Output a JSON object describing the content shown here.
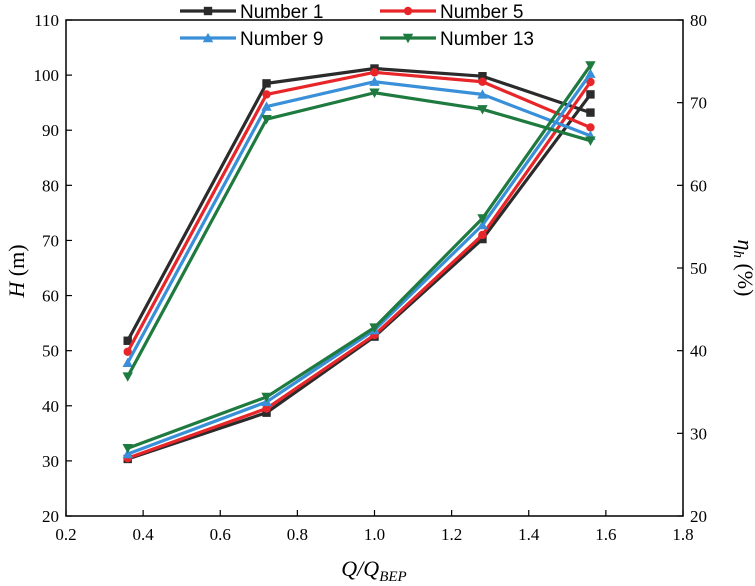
{
  "chart_data": {
    "type": "line",
    "title": "",
    "x": [
      0.36,
      0.72,
      1.0,
      1.28,
      1.56
    ],
    "xlabel": {
      "main": "Q/Q",
      "sub": "BEP"
    },
    "xlim": [
      0.2,
      1.8
    ],
    "xticks": [
      "0.2",
      "0.4",
      "0.6",
      "0.8",
      "1.0",
      "1.2",
      "1.4",
      "1.6",
      "1.8"
    ],
    "ylabel_left": {
      "main": "H",
      "unit": " (m)"
    },
    "ylim_left": [
      20,
      110
    ],
    "yticks_left": [
      "20",
      "30",
      "40",
      "50",
      "60",
      "70",
      "80",
      "90",
      "100",
      "110"
    ],
    "ylabel_right": {
      "main": "η",
      "sub": "h",
      "unit": " (%)"
    },
    "ylim_right": [
      20,
      80
    ],
    "yticks_right": [
      "20",
      "30",
      "40",
      "50",
      "60",
      "70",
      "80"
    ],
    "grid": false,
    "legend_position": "top",
    "series": [
      {
        "name": "Number 1",
        "color": "#2b2b2b",
        "marker": "square",
        "head": [
          51.8,
          98.5,
          101.2,
          99.8,
          93.2
        ],
        "efficiency": [
          26.9,
          32.5,
          41.7,
          53.5,
          71.0
        ]
      },
      {
        "name": "Number 5",
        "color": "#e8262a",
        "marker": "circle",
        "head": [
          49.8,
          96.5,
          100.5,
          98.8,
          90.5
        ],
        "efficiency": [
          27.0,
          33.0,
          41.9,
          54.0,
          72.5
        ]
      },
      {
        "name": "Number 9",
        "color": "#3a90d8",
        "marker": "triangle-up",
        "head": [
          47.8,
          94.3,
          98.8,
          96.5,
          89.0
        ],
        "efficiency": [
          27.5,
          33.8,
          42.5,
          55.2,
          73.5
        ]
      },
      {
        "name": "Number 13",
        "color": "#1e7a3e",
        "marker": "triangle-down",
        "head": [
          45.3,
          92.0,
          96.8,
          93.8,
          88.1
        ],
        "efficiency": [
          28.2,
          34.4,
          42.8,
          56.0,
          74.5
        ]
      }
    ]
  }
}
